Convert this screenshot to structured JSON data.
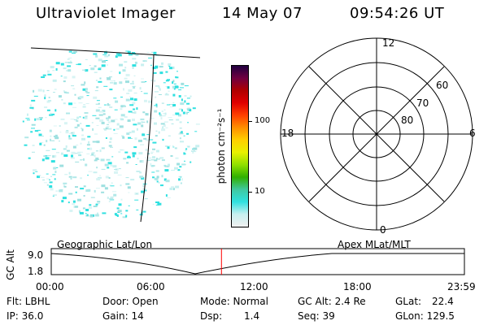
{
  "header": {
    "title": "Ultraviolet Imager",
    "date": "14 May 07",
    "time": "09:54:26 UT"
  },
  "colorbar": {
    "unit_label": "photon cm⁻²s⁻¹",
    "ticks": [
      "100",
      "10"
    ],
    "colors": [
      "#f0f0f0",
      "#c8f0f0",
      "#30e0e0",
      "#40c8a0",
      "#30b000",
      "#90e000",
      "#e8f000",
      "#ffd000",
      "#ff9000",
      "#ff4000",
      "#e00000",
      "#b00000",
      "#700040",
      "#200040"
    ]
  },
  "polar": {
    "mlt_labels": {
      "top": "12",
      "left": "18",
      "right": "6",
      "bottom": "0"
    },
    "lat_labels": [
      "60",
      "70",
      "80"
    ]
  },
  "timeline": {
    "ylabel": "GC Alt",
    "yticks": [
      "9.0",
      "1.8"
    ],
    "left_title": "Geographic Lat/Lon",
    "right_title": "Apex MLat/MLT",
    "xticks": [
      "00:00",
      "06:00",
      "12:00",
      "18:00",
      "23:59"
    ],
    "current_time_fraction": 0.412,
    "marker_color": "#ff0000"
  },
  "footer": {
    "row1": [
      "Flt: LBHL",
      "Door: Open",
      "Mode: Normal",
      "GC Alt: 2.4 Re",
      "GLat:",
      "22.4"
    ],
    "row2": [
      "IP: 36.0",
      "Gain: 14",
      "Dsp:",
      "1.4",
      "Seq: 39",
      "GLon: 129.5"
    ]
  }
}
